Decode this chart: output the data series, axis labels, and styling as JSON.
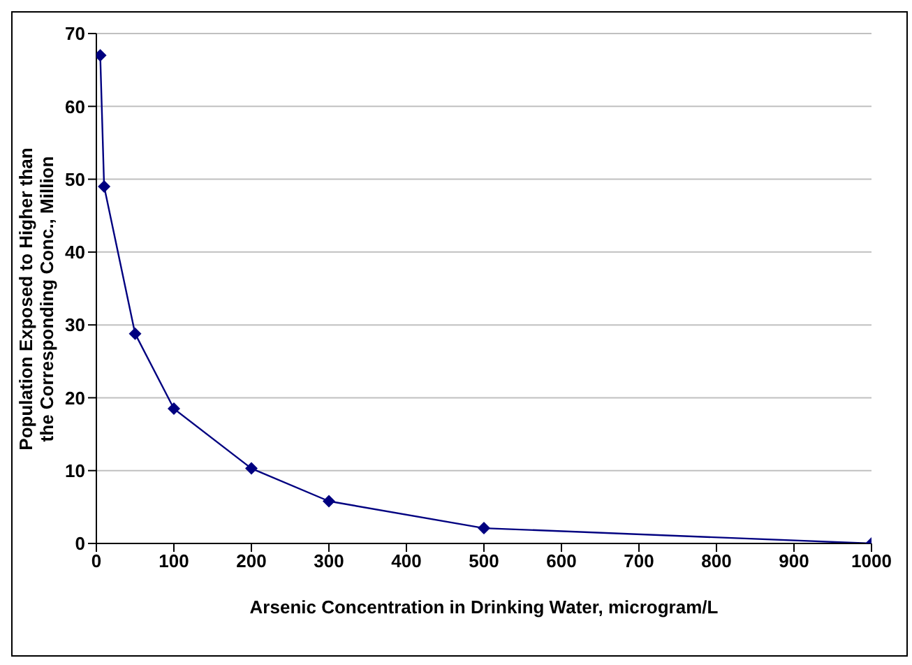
{
  "chart_data": {
    "type": "line",
    "xlabel": "Arsenic Concentration in Drinking Water, microgram/L",
    "ylabel": "Population Exposed to Higher than the Corresponding Conc., Million",
    "x": [
      5,
      10,
      50,
      100,
      200,
      300,
      500,
      1000
    ],
    "series": [
      {
        "color": "#000080",
        "values": [
          67,
          49,
          28.8,
          18.5,
          10.3,
          5.8,
          2.1,
          0
        ]
      }
    ],
    "xlim": [
      0,
      1000
    ],
    "xticks": [
      0,
      100,
      200,
      300,
      400,
      500,
      600,
      700,
      800,
      900,
      1000
    ],
    "ylim": [
      0,
      70
    ],
    "yticks": [
      0,
      10,
      20,
      30,
      40,
      50,
      60,
      70
    ],
    "grid": "y",
    "marker": "diamond",
    "line_style": "solid",
    "legend": false
  }
}
